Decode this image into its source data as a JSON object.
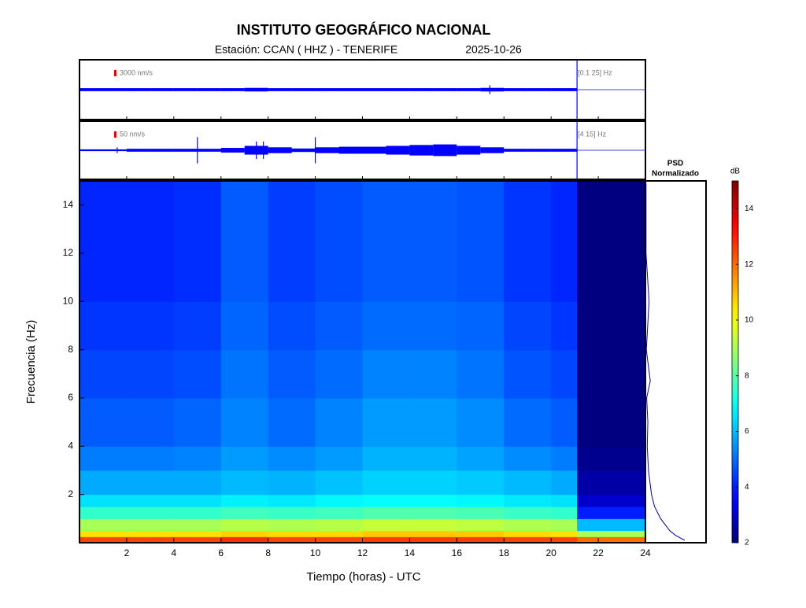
{
  "chart_data": {
    "type": "spectrogram",
    "title": "INSTITUTO GEOGRÁFICO NACIONAL",
    "subtitle": "Estación:  CCAN ( HHZ ) - TENERIFE",
    "date": "2025-10-26",
    "xlabel": "Tiempo (horas) - UTC",
    "ylabel": "Frecuencia  (Hz)",
    "xlim": [
      0,
      24
    ],
    "xticks": [
      2,
      4,
      6,
      8,
      10,
      12,
      14,
      16,
      18,
      20,
      22,
      24
    ],
    "ylim": [
      0,
      15
    ],
    "yticks": [
      2,
      4,
      6,
      8,
      10,
      12,
      14
    ],
    "colormap": "jet",
    "clim": [
      2,
      15
    ],
    "colorbar_label": "dB",
    "colorbar_ticks": [
      2,
      4,
      6,
      8,
      10,
      12,
      14
    ],
    "time_edges": [
      0,
      2,
      4,
      6,
      8,
      10,
      12,
      14,
      16,
      18,
      20,
      21.1
    ],
    "freq_edges": [
      0,
      0.25,
      0.5,
      1,
      1.5,
      2,
      3,
      4,
      6,
      8,
      10,
      15
    ],
    "z": [
      [
        12.5,
        12.5,
        12.5,
        12.8,
        12.5,
        12.5,
        12.6,
        12.6,
        12.6,
        12.5,
        12.5
      ],
      [
        10.5,
        10.5,
        10.5,
        10.7,
        10.6,
        10.6,
        10.8,
        10.8,
        10.8,
        10.6,
        10.5
      ],
      [
        9.0,
        9.0,
        9.0,
        9.2,
        9.1,
        9.2,
        9.4,
        9.4,
        9.3,
        9.1,
        9.0
      ],
      [
        7.5,
        7.5,
        7.5,
        7.7,
        7.6,
        7.7,
        7.9,
        7.9,
        7.8,
        7.6,
        7.5
      ],
      [
        6.5,
        6.5,
        6.5,
        6.7,
        6.6,
        6.8,
        6.9,
        6.9,
        6.8,
        6.6,
        6.5
      ],
      [
        5.8,
        5.8,
        5.8,
        6.0,
        5.9,
        6.1,
        6.3,
        6.3,
        6.2,
        6.0,
        5.8
      ],
      [
        5.2,
        5.2,
        5.3,
        5.6,
        5.4,
        5.6,
        5.9,
        5.9,
        5.7,
        5.4,
        5.2
      ],
      [
        4.8,
        4.8,
        4.9,
        5.3,
        5.0,
        5.3,
        5.6,
        5.6,
        5.4,
        5.0,
        4.8
      ],
      [
        4.5,
        4.5,
        4.6,
        5.1,
        4.8,
        5.0,
        5.3,
        5.3,
        5.1,
        4.7,
        4.5
      ],
      [
        4.3,
        4.3,
        4.4,
        4.9,
        4.6,
        4.8,
        5.0,
        5.0,
        4.9,
        4.5,
        4.3
      ],
      [
        4.1,
        4.1,
        4.2,
        4.8,
        4.4,
        4.6,
        4.8,
        4.8,
        4.7,
        4.3,
        4.1
      ]
    ],
    "mean_spectrum": [
      12,
      9,
      6,
      4,
      3,
      2.5,
      2.2,
      2,
      2,
      2,
      2
    ],
    "psd_title": "PSD",
    "psd_subtitle": "Normalizado",
    "psd_xlim": [
      0,
      1
    ],
    "psd_color": "#00008b",
    "psd_freqs": [
      0.1,
      0.3,
      0.5,
      1,
      1.5,
      2,
      3,
      4,
      5,
      6,
      6.7,
      8,
      10,
      12,
      14.9
    ],
    "psd_values": [
      0.65,
      0.5,
      0.4,
      0.25,
      0.15,
      0.1,
      0.05,
      0.03,
      0.04,
      0.02,
      0.08,
      0.015,
      0.06,
      0.01,
      0.01
    ],
    "trace_end": 21.1,
    "trace_hours": [
      0,
      1,
      2,
      3,
      4,
      5,
      6,
      7,
      8,
      9,
      10,
      11,
      12,
      13,
      14,
      15,
      16,
      17,
      18,
      19,
      20,
      21
    ],
    "traces": [
      {
        "scale_label": "3000 nm/s",
        "band_label": "[0.1 25] Hz",
        "color": "#0000ff",
        "ylim": [
          -1,
          1
        ],
        "envelope": [
          0.05,
          0.05,
          0.05,
          0.05,
          0.05,
          0.05,
          0.05,
          0.06,
          0.05,
          0.05,
          0.05,
          0.05,
          0.05,
          0.05,
          0.05,
          0.05,
          0.05,
          0.06,
          0.05,
          0.05,
          0.05,
          0.05
        ],
        "spikes_x": [
          17.4
        ],
        "spikes": [
          0.15
        ]
      },
      {
        "scale_label": "50 nm/s",
        "band_label": "[4 15] Hz",
        "color": "#0000ff",
        "ylim": [
          -1,
          1
        ],
        "envelope": [
          0.03,
          0.03,
          0.05,
          0.05,
          0.05,
          0.05,
          0.08,
          0.15,
          0.1,
          0.06,
          0.1,
          0.12,
          0.12,
          0.15,
          0.18,
          0.2,
          0.15,
          0.1,
          0.05,
          0.05,
          0.05,
          0.05
        ],
        "spikes_x": [
          1.6,
          5.0,
          7.5,
          7.8,
          10.0
        ],
        "spikes": [
          0.1,
          0.45,
          0.3,
          0.3,
          0.45
        ]
      }
    ]
  }
}
